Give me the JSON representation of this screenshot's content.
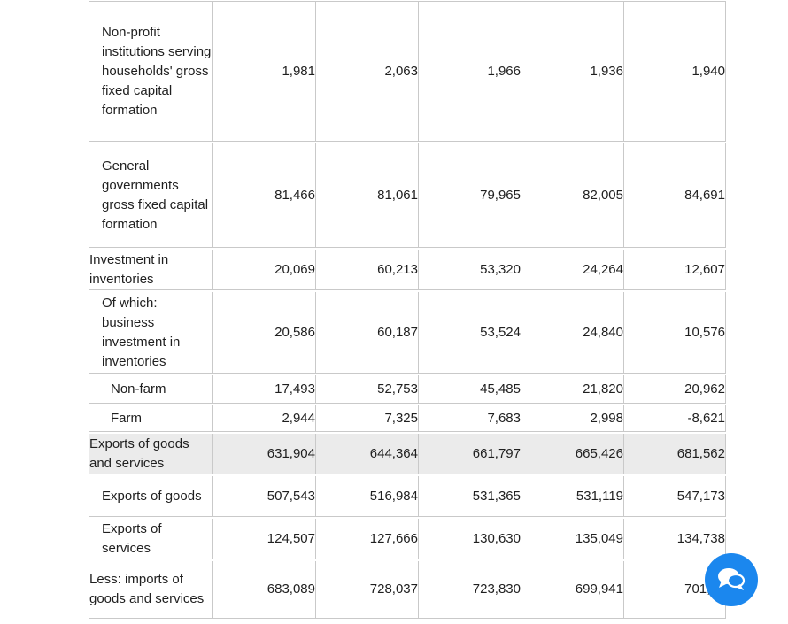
{
  "page": {
    "background_color": "#ffffff",
    "border_color": "#c9c9c9",
    "shaded_row_color": "#ebebeb"
  },
  "table": {
    "description": "national accounts statistics table (no header row visible)",
    "rows": [
      {
        "label": "Non-profit institutions serving households' gross fixed capital formation",
        "indent": 1,
        "shaded": false,
        "values": [
          "1,981",
          "2,063",
          "1,966",
          "1,936",
          "1,940"
        ]
      },
      {
        "label": "General governments gross fixed capital formation",
        "indent": 1,
        "shaded": false,
        "values": [
          "81,466",
          "81,061",
          "79,965",
          "82,005",
          "84,691"
        ]
      },
      {
        "label": "Investment in inventories",
        "indent": 0,
        "shaded": false,
        "values": [
          "20,069",
          "60,213",
          "53,320",
          "24,264",
          "12,607"
        ]
      },
      {
        "label": "Of which: business investment in inventories",
        "indent": 1,
        "shaded": false,
        "values": [
          "20,586",
          "60,187",
          "53,524",
          "24,840",
          "10,576"
        ]
      },
      {
        "label": "Non-farm",
        "indent": 2,
        "shaded": false,
        "values": [
          "17,493",
          "52,753",
          "45,485",
          "21,820",
          "20,962"
        ]
      },
      {
        "label": "Farm",
        "indent": 2,
        "shaded": false,
        "values": [
          "2,944",
          "7,325",
          "7,683",
          "2,998",
          "-8,621"
        ]
      },
      {
        "label": "Exports of goods and services",
        "indent": 0,
        "shaded": true,
        "values": [
          "631,904",
          "644,364",
          "661,797",
          "665,426",
          "681,562"
        ]
      },
      {
        "label": "Exports of goods",
        "indent": 1,
        "shaded": false,
        "values": [
          "507,543",
          "516,984",
          "531,365",
          "531,119",
          "547,173"
        ]
      },
      {
        "label": "Exports of services",
        "indent": 1,
        "shaded": false,
        "values": [
          "124,507",
          "127,666",
          "130,630",
          "135,049",
          "134,738"
        ]
      },
      {
        "label": "Less: imports of goods and services",
        "indent": 0,
        "shaded": false,
        "values": [
          "683,089",
          "728,037",
          "723,830",
          "699,941",
          "701,58"
        ]
      }
    ]
  },
  "chat_widget": {
    "button_color": "#1b87ee",
    "icon": "chat-bubbles-icon"
  }
}
